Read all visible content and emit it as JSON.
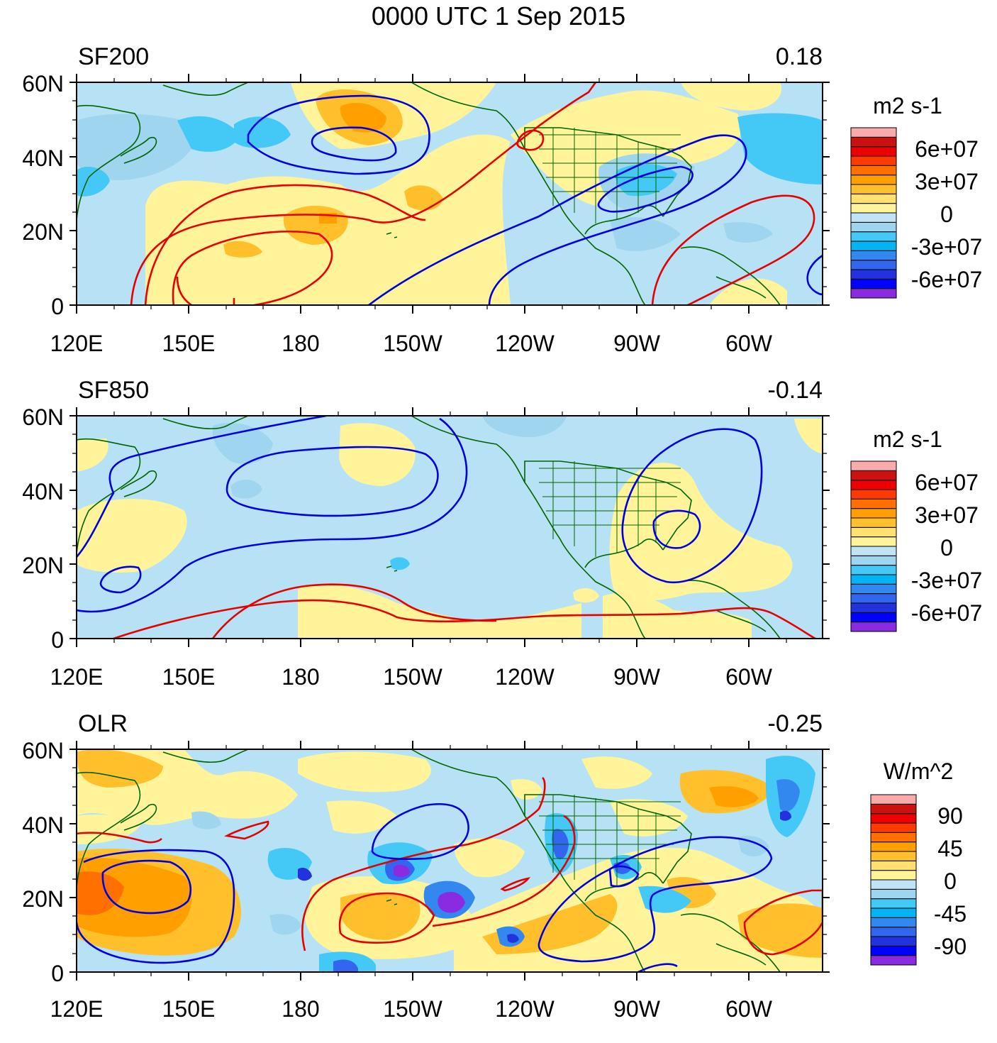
{
  "title": "0000 UTC 1 Sep 2015",
  "colors": {
    "positive_contour": "#e60000",
    "negative_contour": "#0000dd",
    "coastline": "#006400",
    "frame": "#000000",
    "zero_band": "#b7e2f5"
  },
  "lat_labels": [
    "60N",
    "40N",
    "20N",
    "0"
  ],
  "lon_labels": [
    "120E",
    "150E",
    "180",
    "150W",
    "120W",
    "90W",
    "60W"
  ],
  "colorbar_colors": [
    "#8a2be2",
    "#0000ff",
    "#2233dd",
    "#3366ee",
    "#3388f0",
    "#00b4f5",
    "#44c8f5",
    "#9fd5ef",
    "#c0e4f5",
    "#fff49a",
    "#ffe070",
    "#ffc02c",
    "#ffa000",
    "#ff7000",
    "#ff3a00",
    "#ee0000",
    "#cc1111",
    "#f9aaaa"
  ],
  "panels": [
    {
      "id": "sf200",
      "name": "SF200",
      "correlation": "0.18",
      "units": "m2 s-1",
      "colorbar_ticks": [
        "6e+07",
        "3e+07",
        "0",
        "-3e+07",
        "-6e+07"
      ]
    },
    {
      "id": "sf850",
      "name": "SF850",
      "correlation": "-0.14",
      "units": "m2 s-1",
      "colorbar_ticks": [
        "6e+07",
        "3e+07",
        "0",
        "-3e+07",
        "-6e+07"
      ]
    },
    {
      "id": "olr",
      "name": "OLR",
      "correlation": "-0.25",
      "units": "W/m^2",
      "colorbar_ticks": [
        "90",
        "45",
        "0",
        "-45",
        "-90"
      ]
    }
  ]
}
